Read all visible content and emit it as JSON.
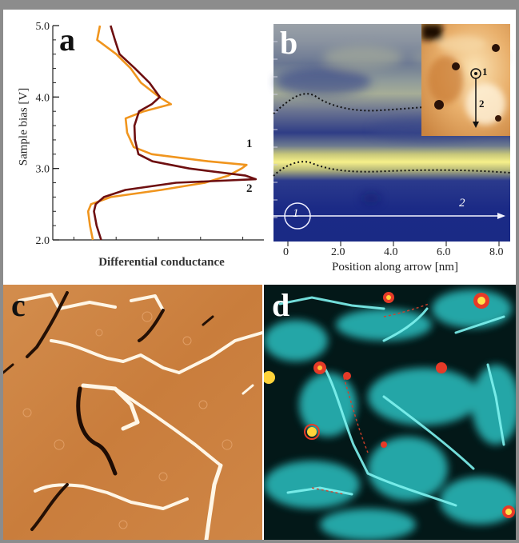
{
  "panels": {
    "a": {
      "letter": "a",
      "ylabel": "Sample bias [V]",
      "xlabel": "Differential conductance",
      "yticks": [
        "2.0",
        "3.0",
        "4.0",
        "5.0"
      ],
      "curve_labels": [
        "1",
        "2"
      ],
      "colors": {
        "curve1": "#f0951e",
        "curve2": "#6e0f10"
      }
    },
    "b": {
      "letter": "b",
      "xlabel": "Position along arrow [nm]",
      "xticks": [
        "0",
        "2.0",
        "4.0",
        "6.0",
        "8.0"
      ],
      "arrow_labels": [
        "1",
        "2"
      ],
      "inset_labels": [
        "1",
        "2"
      ]
    },
    "c": {
      "letter": "c"
    },
    "d": {
      "letter": "d"
    }
  },
  "chart_data": {
    "type": "line",
    "title": "",
    "xlabel": "Differential conductance",
    "ylabel": "Sample bias [V]",
    "ylim": [
      2.0,
      5.0
    ],
    "series": [
      {
        "name": "1",
        "bias": [
          2.0,
          2.2,
          2.4,
          2.5,
          2.6,
          2.7,
          2.8,
          2.9,
          3.0,
          3.05,
          3.1,
          3.2,
          3.3,
          3.5,
          3.7,
          3.8,
          3.9,
          4.0,
          4.2,
          4.4,
          4.6,
          4.8,
          5.0
        ],
        "conductance": [
          0.18,
          0.16,
          0.15,
          0.17,
          0.28,
          0.55,
          0.78,
          0.9,
          0.97,
          1.0,
          0.8,
          0.5,
          0.4,
          0.36,
          0.35,
          0.45,
          0.6,
          0.54,
          0.44,
          0.38,
          0.3,
          0.2,
          0.22
        ]
      },
      {
        "name": "2",
        "bias": [
          2.0,
          2.2,
          2.4,
          2.5,
          2.6,
          2.7,
          2.8,
          2.85,
          2.9,
          3.0,
          3.1,
          3.2,
          3.4,
          3.6,
          3.8,
          3.9,
          4.0,
          4.2,
          4.4,
          4.6,
          4.8,
          5.0
        ],
        "conductance": [
          0.22,
          0.2,
          0.19,
          0.2,
          0.24,
          0.35,
          0.62,
          1.05,
          1.0,
          0.7,
          0.5,
          0.42,
          0.4,
          0.4,
          0.43,
          0.5,
          0.54,
          0.48,
          0.4,
          0.32,
          0.3,
          0.28
        ]
      }
    ]
  }
}
